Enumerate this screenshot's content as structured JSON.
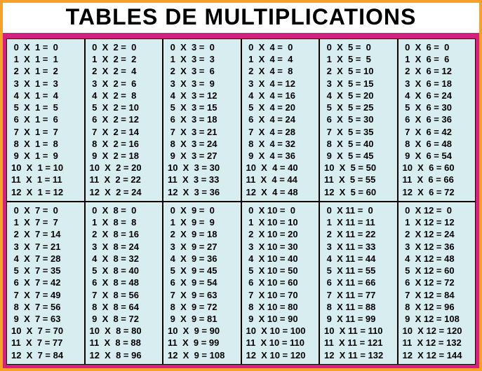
{
  "title": "TABLES DE MULTIPLICATIONS",
  "colors": {
    "outer_border": "#f7a12a",
    "inner_border": "#d61f7f",
    "cell_bg": "#d7edf0",
    "title_color": "#000000",
    "title_fontsize": 32,
    "cell_fontsize": 13
  },
  "layout": {
    "cols": 6,
    "rows_of_blocks": 2,
    "multiplicand_range": [
      0,
      12
    ],
    "multiplier_range": [
      1,
      12
    ]
  },
  "tables": [
    {
      "n": 1,
      "rows": [
        [
          0,
          1,
          0
        ],
        [
          1,
          1,
          1
        ],
        [
          2,
          1,
          2
        ],
        [
          3,
          1,
          3
        ],
        [
          4,
          1,
          4
        ],
        [
          5,
          1,
          5
        ],
        [
          6,
          1,
          6
        ],
        [
          7,
          1,
          7
        ],
        [
          8,
          1,
          8
        ],
        [
          9,
          1,
          9
        ],
        [
          10,
          1,
          10
        ],
        [
          11,
          1,
          11
        ],
        [
          12,
          1,
          12
        ]
      ]
    },
    {
      "n": 2,
      "rows": [
        [
          0,
          2,
          0
        ],
        [
          1,
          2,
          2
        ],
        [
          2,
          2,
          4
        ],
        [
          3,
          2,
          6
        ],
        [
          4,
          2,
          8
        ],
        [
          5,
          2,
          10
        ],
        [
          6,
          2,
          12
        ],
        [
          7,
          2,
          14
        ],
        [
          8,
          2,
          16
        ],
        [
          9,
          2,
          18
        ],
        [
          10,
          2,
          20
        ],
        [
          11,
          2,
          22
        ],
        [
          12,
          2,
          24
        ]
      ]
    },
    {
      "n": 3,
      "rows": [
        [
          0,
          3,
          0
        ],
        [
          1,
          3,
          3
        ],
        [
          2,
          3,
          6
        ],
        [
          3,
          3,
          9
        ],
        [
          4,
          3,
          12
        ],
        [
          5,
          3,
          15
        ],
        [
          6,
          3,
          18
        ],
        [
          7,
          3,
          21
        ],
        [
          8,
          3,
          24
        ],
        [
          9,
          3,
          27
        ],
        [
          10,
          3,
          30
        ],
        [
          11,
          3,
          33
        ],
        [
          12,
          3,
          36
        ]
      ]
    },
    {
      "n": 4,
      "rows": [
        [
          0,
          4,
          0
        ],
        [
          1,
          4,
          4
        ],
        [
          2,
          4,
          8
        ],
        [
          3,
          4,
          12
        ],
        [
          4,
          4,
          16
        ],
        [
          5,
          4,
          20
        ],
        [
          6,
          4,
          24
        ],
        [
          7,
          4,
          28
        ],
        [
          8,
          4,
          32
        ],
        [
          9,
          4,
          36
        ],
        [
          10,
          4,
          40
        ],
        [
          11,
          4,
          44
        ],
        [
          12,
          4,
          48
        ]
      ]
    },
    {
      "n": 5,
      "rows": [
        [
          0,
          5,
          0
        ],
        [
          1,
          5,
          5
        ],
        [
          2,
          5,
          10
        ],
        [
          3,
          5,
          15
        ],
        [
          4,
          5,
          20
        ],
        [
          5,
          5,
          25
        ],
        [
          6,
          5,
          30
        ],
        [
          7,
          5,
          35
        ],
        [
          8,
          5,
          40
        ],
        [
          9,
          5,
          45
        ],
        [
          10,
          5,
          50
        ],
        [
          11,
          5,
          55
        ],
        [
          12,
          5,
          60
        ]
      ]
    },
    {
      "n": 6,
      "rows": [
        [
          0,
          6,
          0
        ],
        [
          1,
          6,
          6
        ],
        [
          2,
          6,
          12
        ],
        [
          3,
          6,
          18
        ],
        [
          4,
          6,
          24
        ],
        [
          5,
          6,
          30
        ],
        [
          6,
          6,
          36
        ],
        [
          7,
          6,
          42
        ],
        [
          8,
          6,
          48
        ],
        [
          9,
          6,
          54
        ],
        [
          10,
          6,
          60
        ],
        [
          11,
          6,
          66
        ],
        [
          12,
          6,
          72
        ]
      ]
    },
    {
      "n": 7,
      "rows": [
        [
          0,
          7,
          0
        ],
        [
          1,
          7,
          7
        ],
        [
          2,
          7,
          14
        ],
        [
          3,
          7,
          21
        ],
        [
          4,
          7,
          28
        ],
        [
          5,
          7,
          35
        ],
        [
          6,
          7,
          42
        ],
        [
          7,
          7,
          49
        ],
        [
          8,
          7,
          56
        ],
        [
          9,
          7,
          63
        ],
        [
          10,
          7,
          70
        ],
        [
          11,
          7,
          77
        ],
        [
          12,
          7,
          84
        ]
      ]
    },
    {
      "n": 8,
      "rows": [
        [
          0,
          8,
          0
        ],
        [
          1,
          8,
          8
        ],
        [
          2,
          8,
          16
        ],
        [
          3,
          8,
          24
        ],
        [
          4,
          8,
          32
        ],
        [
          5,
          8,
          40
        ],
        [
          6,
          8,
          48
        ],
        [
          7,
          8,
          56
        ],
        [
          8,
          8,
          64
        ],
        [
          9,
          8,
          72
        ],
        [
          10,
          8,
          80
        ],
        [
          11,
          8,
          88
        ],
        [
          12,
          8,
          96
        ]
      ]
    },
    {
      "n": 9,
      "rows": [
        [
          0,
          9,
          0
        ],
        [
          1,
          9,
          9
        ],
        [
          2,
          9,
          18
        ],
        [
          3,
          9,
          27
        ],
        [
          4,
          9,
          36
        ],
        [
          5,
          9,
          45
        ],
        [
          6,
          9,
          54
        ],
        [
          7,
          9,
          63
        ],
        [
          8,
          9,
          72
        ],
        [
          9,
          9,
          81
        ],
        [
          10,
          9,
          90
        ],
        [
          11,
          9,
          99
        ],
        [
          12,
          9,
          108
        ]
      ]
    },
    {
      "n": 10,
      "rows": [
        [
          0,
          10,
          0
        ],
        [
          1,
          10,
          10
        ],
        [
          2,
          10,
          20
        ],
        [
          3,
          10,
          30
        ],
        [
          4,
          10,
          40
        ],
        [
          5,
          10,
          50
        ],
        [
          6,
          10,
          60
        ],
        [
          7,
          10,
          70
        ],
        [
          8,
          10,
          80
        ],
        [
          9,
          10,
          90
        ],
        [
          10,
          10,
          100
        ],
        [
          11,
          10,
          110
        ],
        [
          12,
          10,
          120
        ]
      ]
    },
    {
      "n": 11,
      "rows": [
        [
          0,
          11,
          0
        ],
        [
          1,
          11,
          11
        ],
        [
          2,
          11,
          22
        ],
        [
          3,
          11,
          33
        ],
        [
          4,
          11,
          44
        ],
        [
          5,
          11,
          55
        ],
        [
          6,
          11,
          66
        ],
        [
          7,
          11,
          77
        ],
        [
          8,
          11,
          88
        ],
        [
          9,
          11,
          99
        ],
        [
          10,
          11,
          110
        ],
        [
          11,
          11,
          121
        ],
        [
          12,
          11,
          132
        ]
      ]
    },
    {
      "n": 12,
      "rows": [
        [
          0,
          12,
          0
        ],
        [
          1,
          12,
          12
        ],
        [
          2,
          12,
          24
        ],
        [
          3,
          12,
          36
        ],
        [
          4,
          12,
          48
        ],
        [
          5,
          12,
          60
        ],
        [
          6,
          12,
          72
        ],
        [
          7,
          12,
          84
        ],
        [
          8,
          12,
          96
        ],
        [
          9,
          12,
          108
        ],
        [
          10,
          12,
          120
        ],
        [
          11,
          12,
          132
        ],
        [
          12,
          12,
          144
        ]
      ]
    }
  ]
}
